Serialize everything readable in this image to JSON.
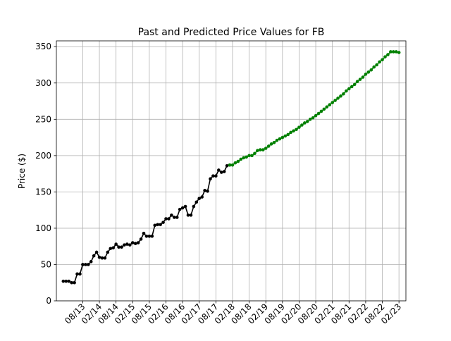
{
  "chart_data": {
    "type": "line",
    "title": "Past and Predicted Price Values for FB",
    "xlabel": "",
    "ylabel": "Price ($)",
    "ylim": [
      0,
      358
    ],
    "yticks": [
      0,
      50,
      100,
      150,
      200,
      250,
      300,
      350
    ],
    "xticks": [
      "08/13",
      "02/14",
      "08/14",
      "02/15",
      "08/15",
      "02/16",
      "08/16",
      "02/17",
      "08/17",
      "02/18",
      "08/18",
      "02/19",
      "08/19",
      "02/20",
      "08/20",
      "02/21",
      "08/21",
      "02/22",
      "08/22",
      "02/23"
    ],
    "grid": true,
    "legend": "none",
    "series": [
      {
        "color": "#000000",
        "marker": "circle",
        "x": [
          "2013-01",
          "2013-02",
          "2013-03",
          "2013-04",
          "2013-05",
          "2013-06",
          "2013-07",
          "2013-08",
          "2013-09",
          "2013-10",
          "2013-11",
          "2013-12",
          "2014-01",
          "2014-02",
          "2014-03",
          "2014-04",
          "2014-05",
          "2014-06",
          "2014-07",
          "2014-08",
          "2014-09",
          "2014-10",
          "2014-11",
          "2014-12",
          "2015-01",
          "2015-02",
          "2015-03",
          "2015-04",
          "2015-05",
          "2015-06",
          "2015-07",
          "2015-08",
          "2015-09",
          "2015-10",
          "2015-11",
          "2015-12",
          "2016-01",
          "2016-02",
          "2016-03",
          "2016-04",
          "2016-05",
          "2016-06",
          "2016-07",
          "2016-08",
          "2016-09",
          "2016-10",
          "2016-11",
          "2016-12",
          "2017-01",
          "2017-02",
          "2017-03",
          "2017-04",
          "2017-05",
          "2017-06",
          "2017-07",
          "2017-08",
          "2017-09",
          "2017-10",
          "2017-11",
          "2017-12",
          "2018-01"
        ],
        "values": [
          27,
          27,
          27,
          25,
          25,
          37,
          37,
          50,
          50,
          50,
          54,
          62,
          67,
          60,
          59,
          59,
          67,
          72,
          73,
          78,
          74,
          74,
          77,
          78,
          77,
          80,
          79,
          80,
          85,
          93,
          89,
          89,
          89,
          104,
          105,
          105,
          108,
          113,
          113,
          118,
          115,
          115,
          126,
          128,
          130,
          118,
          118,
          130,
          136,
          141,
          143,
          152,
          151,
          168,
          172,
          172,
          180,
          177,
          178,
          186,
          187
        ]
      },
      {
        "color": "#008000",
        "marker": "circle",
        "x": [
          "2018-01",
          "2018-02",
          "2018-03",
          "2018-04",
          "2018-05",
          "2018-06",
          "2018-07",
          "2018-08",
          "2018-09",
          "2018-10",
          "2018-11",
          "2018-12",
          "2019-01",
          "2019-02",
          "2019-03",
          "2019-04",
          "2019-05",
          "2019-06",
          "2019-07",
          "2019-08",
          "2019-09",
          "2019-10",
          "2019-11",
          "2019-12",
          "2020-01",
          "2020-02",
          "2020-03",
          "2020-04",
          "2020-05",
          "2020-06",
          "2020-07",
          "2020-08",
          "2020-09",
          "2020-10",
          "2020-11",
          "2020-12",
          "2021-01",
          "2021-02",
          "2021-03",
          "2021-04",
          "2021-05",
          "2021-06",
          "2021-07",
          "2021-08",
          "2021-09",
          "2021-10",
          "2021-11",
          "2021-12",
          "2022-01",
          "2022-02",
          "2022-03",
          "2022-04",
          "2022-05",
          "2022-06",
          "2022-07",
          "2022-08",
          "2022-09",
          "2022-10",
          "2022-11",
          "2022-12",
          "2023-01",
          "2023-02"
        ],
        "values": [
          187,
          187,
          190,
          192,
          195,
          197,
          198,
          200,
          200,
          203,
          207,
          208,
          208,
          210,
          213,
          216,
          218,
          221,
          223,
          225,
          227,
          229,
          232,
          234,
          236,
          239,
          242,
          245,
          247,
          250,
          252,
          255,
          258,
          261,
          264,
          267,
          270,
          273,
          276,
          279,
          282,
          285,
          289,
          292,
          295,
          298,
          302,
          305,
          308,
          312,
          315,
          318,
          322,
          325,
          329,
          332,
          336,
          339,
          343,
          343,
          343,
          342
        ]
      }
    ]
  }
}
